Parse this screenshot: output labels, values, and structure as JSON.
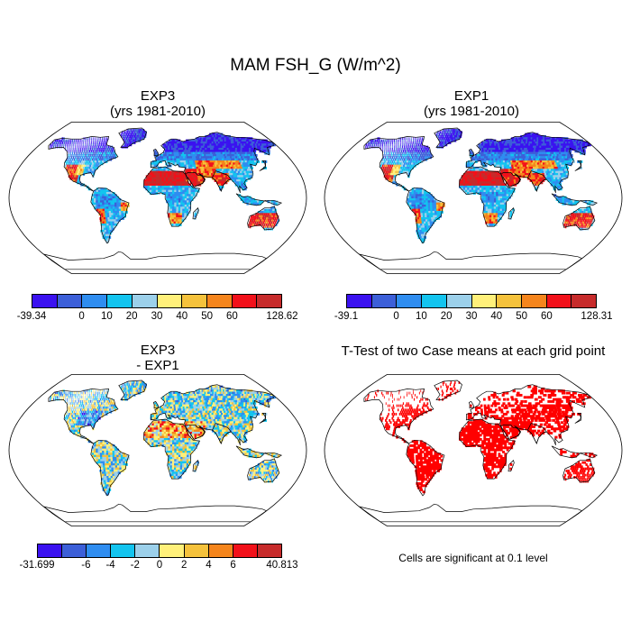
{
  "chart_data": {
    "type": "heatmap",
    "title": "MAM FSH_G (W/m^2)",
    "panels": [
      {
        "id": "exp3",
        "title_line1": "EXP3",
        "title_line2": "(yrs 1981-2010)",
        "colorbar": {
          "colors": [
            "#3b12f0",
            "#3c5fd8",
            "#2f8df0",
            "#13c4ef",
            "#9cd0ea",
            "#fff07a",
            "#f5c23c",
            "#f5851c",
            "#f2111a",
            "#c72b2b"
          ],
          "tick_labels": [
            "-39.34",
            "0",
            "10",
            "20",
            "30",
            "40",
            "50",
            "60",
            "128.62"
          ],
          "min": -39.34,
          "max": 128.62
        }
      },
      {
        "id": "exp1",
        "title_line1": "EXP1",
        "title_line2": "(yrs 1981-2010)",
        "colorbar": {
          "colors": [
            "#3b12f0",
            "#3c5fd8",
            "#2f8df0",
            "#13c4ef",
            "#9cd0ea",
            "#fff07a",
            "#f5c23c",
            "#f5851c",
            "#f2111a",
            "#c72b2b"
          ],
          "tick_labels": [
            "-39.1",
            "0",
            "10",
            "20",
            "30",
            "40",
            "50",
            "60",
            "128.31"
          ],
          "min": -39.1,
          "max": 128.31
        }
      },
      {
        "id": "diff",
        "title_line1": "EXP3",
        "title_line2": "- EXP1",
        "colorbar": {
          "colors": [
            "#3b12f0",
            "#3c5fd8",
            "#2f8df0",
            "#13c4ef",
            "#9cd0ea",
            "#fff07a",
            "#f5c23c",
            "#f5851c",
            "#f2111a",
            "#c72b2b"
          ],
          "tick_labels": [
            "-31.699",
            "-6",
            "-4",
            "-2",
            "0",
            "2",
            "4",
            "6",
            "40.813"
          ],
          "min": -31.699,
          "max": 40.813
        }
      },
      {
        "id": "ttest",
        "title_line1": "T-Test of two Case means at each grid point",
        "note": "Cells are significant at 0.1 level",
        "significant_color": "#ff0000"
      }
    ]
  }
}
